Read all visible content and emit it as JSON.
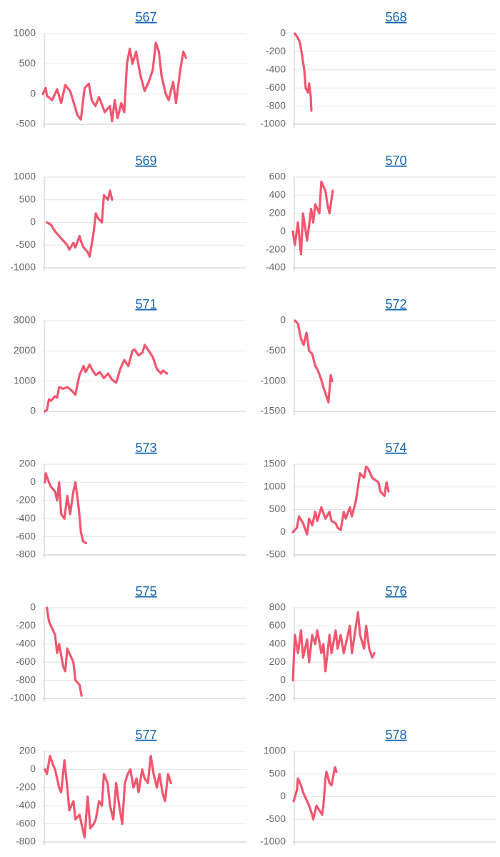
{
  "chart_data": [
    {
      "type": "line",
      "title": "567",
      "color": "#f2566f",
      "grid": true,
      "xlim": [
        0,
        100
      ],
      "ylim": [
        -500,
        1000
      ],
      "yticks": [
        -500,
        0,
        500,
        1000
      ],
      "x": [
        0,
        1.4,
        2,
        4.6,
        7,
        9,
        11,
        13.4,
        14.8,
        17,
        18.7,
        20.5,
        22.6,
        24,
        25.8,
        27.6,
        30.4,
        33,
        34,
        35.3,
        36.7,
        38.5,
        40,
        41.3,
        42.7,
        44,
        45.8,
        48,
        50,
        52,
        54,
        55.5,
        57,
        58.3,
        60.4,
        61.8,
        64,
        65.4,
        67.5,
        69,
        70.3
      ],
      "values": [
        0,
        100,
        -30,
        -100,
        80,
        -150,
        150,
        50,
        -100,
        -350,
        -420,
        100,
        170,
        -100,
        -200,
        -50,
        -300,
        -200,
        -450,
        -100,
        -400,
        -150,
        -300,
        500,
        750,
        500,
        700,
        300,
        50,
        200,
        400,
        850,
        700,
        300,
        0,
        -100,
        200,
        -150,
        400,
        700,
        600
      ]
    },
    {
      "type": "line",
      "title": "568",
      "color": "#f2566f",
      "grid": true,
      "xlim": [
        0,
        100
      ],
      "ylim": [
        -1000,
        0
      ],
      "yticks": [
        -1000,
        -800,
        -600,
        -400,
        -200,
        0
      ],
      "x": [
        1,
        2.5,
        3.5,
        4.6,
        5.6,
        6.3,
        7.4,
        8,
        8.8,
        9.1
      ],
      "values": [
        0,
        -50,
        -100,
        -250,
        -400,
        -600,
        -650,
        -550,
        -700,
        -850
      ]
    },
    {
      "type": "line",
      "title": "569",
      "color": "#f2566f",
      "grid": true,
      "xlim": [
        0,
        100
      ],
      "ylim": [
        -1000,
        1000
      ],
      "yticks": [
        -1000,
        -500,
        0,
        500,
        1000
      ],
      "x": [
        2,
        4,
        6,
        8,
        10,
        12,
        13,
        15,
        16,
        18,
        19,
        20,
        22,
        23,
        25,
        26,
        27,
        29,
        30,
        32,
        33,
        34
      ],
      "values": [
        0,
        -50,
        -200,
        -300,
        -400,
        -500,
        -600,
        -450,
        -550,
        -300,
        -450,
        -550,
        -650,
        -750,
        -200,
        200,
        100,
        0,
        600,
        500,
        700,
        500
      ]
    },
    {
      "type": "line",
      "title": "570",
      "color": "#f2566f",
      "grid": true,
      "xlim": [
        0,
        100
      ],
      "ylim": [
        -400,
        600
      ],
      "yticks": [
        -400,
        -200,
        0,
        200,
        400,
        600
      ],
      "x": [
        0,
        1,
        2.5,
        4,
        5,
        7,
        9,
        10,
        11,
        13,
        14,
        16,
        17,
        18,
        19.6
      ],
      "values": [
        0,
        -150,
        100,
        -250,
        200,
        -100,
        250,
        100,
        300,
        200,
        550,
        450,
        300,
        200,
        450
      ]
    },
    {
      "type": "line",
      "title": "571",
      "color": "#f2566f",
      "grid": true,
      "xlim": [
        0,
        100
      ],
      "ylim": [
        0,
        3000
      ],
      "yticks": [
        0,
        1000,
        2000,
        3000
      ],
      "x": [
        1,
        2,
        3,
        4,
        6,
        7,
        8,
        10,
        12,
        14,
        16,
        17,
        18,
        20,
        21,
        23,
        24,
        26,
        28,
        30,
        32,
        34,
        36,
        38,
        40,
        42,
        44,
        45,
        47,
        49,
        50,
        52,
        53,
        54,
        56,
        58,
        59,
        61
      ],
      "values": [
        0,
        50,
        400,
        350,
        500,
        450,
        800,
        750,
        800,
        700,
        550,
        900,
        1200,
        1500,
        1300,
        1550,
        1400,
        1200,
        1300,
        1100,
        1250,
        1050,
        950,
        1400,
        1700,
        1500,
        2000,
        2050,
        1850,
        1950,
        2200,
        2000,
        1900,
        1800,
        1400,
        1250,
        1350,
        1250
      ]
    },
    {
      "type": "line",
      "title": "572",
      "color": "#f2566f",
      "grid": true,
      "xlim": [
        0,
        100
      ],
      "ylim": [
        -1500,
        0
      ],
      "yticks": [
        -1500,
        -1000,
        -500,
        0
      ],
      "x": [
        1,
        2.5,
        4,
        5.3,
        6.7,
        8,
        9.5,
        11,
        12,
        13.7,
        15,
        16,
        17.5,
        18.6,
        19.3
      ],
      "values": [
        0,
        -50,
        -300,
        -400,
        -200,
        -500,
        -550,
        -750,
        -800,
        -950,
        -1100,
        -1200,
        -1350,
        -900,
        -1000
      ]
    },
    {
      "type": "line",
      "title": "573",
      "color": "#f2566f",
      "grid": true,
      "xlim": [
        0,
        100
      ],
      "ylim": [
        -800,
        200
      ],
      "yticks": [
        -800,
        -600,
        -400,
        -200,
        0,
        200
      ],
      "x": [
        1,
        1.4,
        3,
        4,
        6,
        7,
        8,
        9,
        10.6,
        12,
        13.4,
        15,
        16,
        17.7,
        18.7,
        19.8,
        21.2
      ],
      "values": [
        0,
        100,
        0,
        -50,
        -100,
        -200,
        0,
        -350,
        -400,
        -150,
        -350,
        -100,
        0,
        -300,
        -550,
        -650,
        -670
      ]
    },
    {
      "type": "line",
      "title": "574",
      "color": "#f2566f",
      "grid": true,
      "xlim": [
        0,
        100
      ],
      "ylim": [
        -500,
        1500
      ],
      "yticks": [
        -500,
        0,
        500,
        1000,
        1500
      ],
      "x": [
        0,
        2,
        3,
        5,
        7,
        8,
        9.5,
        11,
        12,
        14,
        16,
        18,
        19,
        21,
        22,
        23.5,
        25,
        26,
        28,
        29,
        31,
        32,
        33,
        35,
        36,
        37,
        39,
        42,
        43,
        45,
        46,
        47
      ],
      "values": [
        0,
        100,
        350,
        200,
        -50,
        300,
        150,
        450,
        250,
        550,
        300,
        450,
        250,
        200,
        100,
        50,
        450,
        300,
        550,
        350,
        700,
        1000,
        1300,
        1200,
        1450,
        1400,
        1200,
        1100,
        900,
        800,
        1100,
        900
      ]
    },
    {
      "type": "line",
      "title": "575",
      "color": "#f2566f",
      "grid": true,
      "xlim": [
        0,
        100
      ],
      "ylim": [
        -1000,
        0
      ],
      "yticks": [
        -1000,
        -800,
        -600,
        -400,
        -200,
        0
      ],
      "x": [
        2,
        3,
        4,
        6,
        7,
        8,
        10,
        11,
        12,
        13,
        15,
        16,
        18,
        19
      ],
      "values": [
        0,
        -150,
        -200,
        -300,
        -500,
        -400,
        -650,
        -700,
        -450,
        -500,
        -600,
        -800,
        -850,
        -970
      ]
    },
    {
      "type": "line",
      "title": "576",
      "color": "#f2566f",
      "grid": true,
      "xlim": [
        0,
        100
      ],
      "ylim": [
        -200,
        800
      ],
      "yticks": [
        -200,
        0,
        200,
        400,
        600,
        800
      ],
      "x": [
        0,
        1,
        2.5,
        4,
        5,
        7,
        8,
        9.5,
        11,
        12,
        14,
        15,
        16,
        18,
        19,
        21,
        22,
        23.5,
        25,
        26,
        28,
        29,
        31,
        32,
        33,
        35,
        36,
        37.5,
        39,
        40
      ],
      "values": [
        0,
        500,
        300,
        550,
        250,
        450,
        200,
        500,
        400,
        550,
        300,
        400,
        100,
        500,
        300,
        550,
        350,
        500,
        300,
        400,
        600,
        300,
        600,
        750,
        500,
        350,
        600,
        350,
        250,
        300
      ]
    },
    {
      "type": "line",
      "title": "577",
      "color": "#f2566f",
      "grid": true,
      "xlim": [
        0,
        100
      ],
      "ylim": [
        -800,
        200
      ],
      "yticks": [
        -800,
        -600,
        -400,
        -200,
        0,
        200
      ],
      "x": [
        1,
        2,
        3.5,
        5,
        6,
        8,
        9,
        10.6,
        12,
        13,
        15,
        16,
        18,
        19,
        20.5,
        22,
        23.3,
        25,
        26,
        27.6,
        29,
        30,
        31.8,
        33,
        34.6,
        36,
        37.5,
        39,
        40.3,
        41.7,
        43,
        44.5,
        46,
        47,
        48.8,
        50,
        51.6,
        53,
        54.4,
        56,
        57.3,
        58.7,
        60,
        61.5,
        62.9
      ],
      "values": [
        0,
        -50,
        150,
        50,
        0,
        -200,
        -250,
        100,
        -200,
        -450,
        -350,
        -550,
        -500,
        -600,
        -750,
        -300,
        -650,
        -600,
        -550,
        -350,
        -400,
        -50,
        -150,
        -400,
        -550,
        -150,
        -400,
        -600,
        -150,
        -50,
        0,
        -200,
        -100,
        -250,
        0,
        -100,
        -150,
        150,
        -50,
        -200,
        -50,
        -250,
        -350,
        -50,
        -150
      ]
    },
    {
      "type": "line",
      "title": "578",
      "color": "#f2566f",
      "grid": true,
      "xlim": [
        0,
        100
      ],
      "ylim": [
        -1000,
        1000
      ],
      "yticks": [
        -1000,
        -500,
        0,
        500,
        1000
      ],
      "x": [
        0.4,
        2,
        2.5,
        4,
        5,
        7,
        8,
        9.5,
        10,
        11.6,
        13,
        14.4,
        15,
        16,
        16.5,
        18,
        19,
        20.7,
        21.4
      ],
      "values": [
        -100,
        150,
        400,
        250,
        100,
        -100,
        -200,
        -400,
        -500,
        -200,
        -300,
        -400,
        -200,
        400,
        550,
        300,
        250,
        650,
        550
      ]
    }
  ]
}
